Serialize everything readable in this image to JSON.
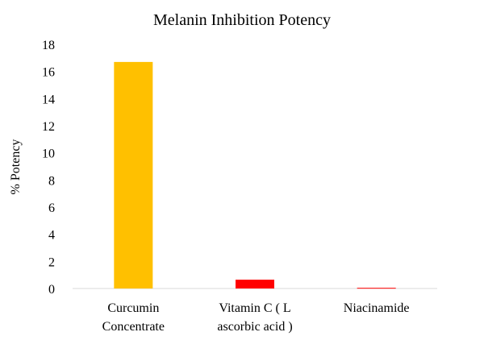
{
  "chart_data": {
    "type": "bar",
    "title": "Melanin Inhibition Potency",
    "xlabel": "",
    "ylabel": "% Potency",
    "ylim": [
      0,
      18
    ],
    "yticks": [
      0,
      2,
      4,
      6,
      8,
      10,
      12,
      14,
      16,
      18
    ],
    "grid": false,
    "legend": "none",
    "categories": [
      "Curcumin Concentrate",
      "Vitamin C ( L ascorbic acid )",
      "Niacinamide"
    ],
    "category_lines": [
      [
        "Curcumin",
        "Concentrate"
      ],
      [
        "Vitamin C ( L",
        "ascorbic acid )"
      ],
      [
        "Niacinamide"
      ]
    ],
    "values": [
      16.7,
      0.65,
      0.05
    ],
    "colors": [
      "#FFC000",
      "#FF0000",
      "#FF0000"
    ]
  }
}
